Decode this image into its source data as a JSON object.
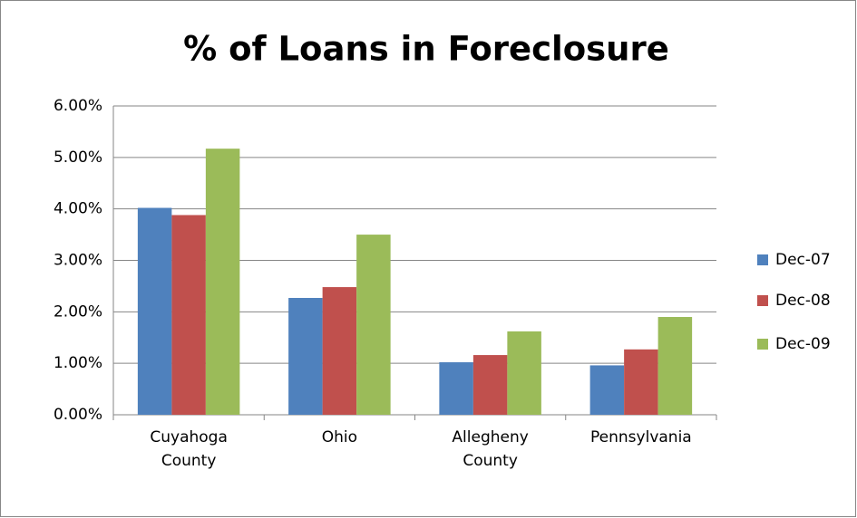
{
  "chart_data": {
    "type": "bar",
    "title": "% of Loans in Foreclosure",
    "categories": [
      "Cuyahoga County",
      "Ohio",
      "Allegheny County",
      "Pennsylvania"
    ],
    "series": [
      {
        "name": "Dec-07",
        "color": "#4f81bd",
        "values": [
          4.02,
          2.27,
          1.02,
          0.96
        ]
      },
      {
        "name": "Dec-08",
        "color": "#c0504d",
        "values": [
          3.88,
          2.48,
          1.16,
          1.27
        ]
      },
      {
        "name": "Dec-09",
        "color": "#9bbb59",
        "values": [
          5.17,
          3.5,
          1.62,
          1.9
        ]
      }
    ],
    "ylim": [
      0,
      6
    ],
    "yticks": [
      {
        "value": 0,
        "label": "0.00%"
      },
      {
        "value": 1,
        "label": "1.00%"
      },
      {
        "value": 2,
        "label": "2.00%"
      },
      {
        "value": 3,
        "label": "3.00%"
      },
      {
        "value": 4,
        "label": "4.00%"
      },
      {
        "value": 5,
        "label": "5.00%"
      },
      {
        "value": 6,
        "label": "6.00%"
      }
    ],
    "grid": true,
    "legend": "right"
  }
}
